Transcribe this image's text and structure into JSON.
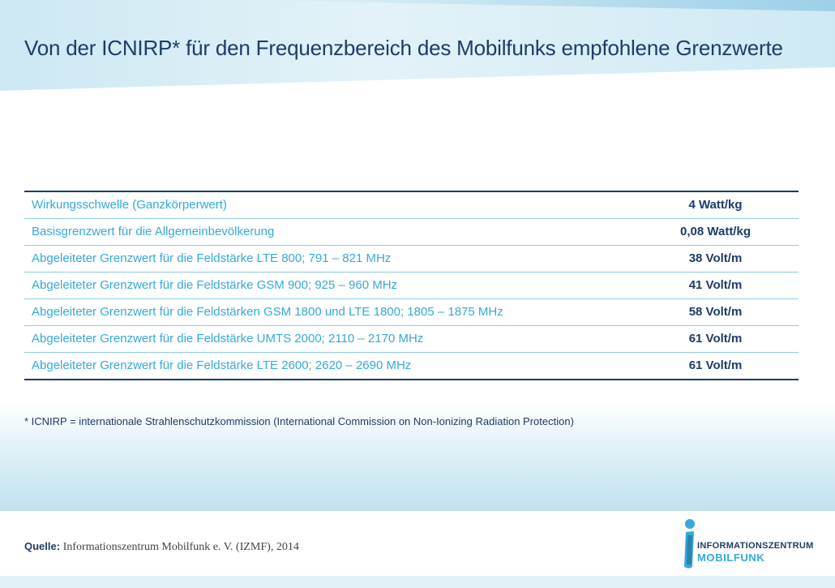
{
  "title": "Von der ICNIRP* für den Frequenzbereich des Mobilfunks empfohlene Grenzwerte",
  "table": {
    "rows": [
      {
        "label": "Wirkungsschwelle (Ganzkörperwert)",
        "value": "4 Watt/kg"
      },
      {
        "label": "Basisgrenzwert für die Allgemeinbevölkerung",
        "value": "0,08 Watt/kg"
      },
      {
        "label": "Abgeleiteter Grenzwert für die Feldstärke LTE 800; 791 – 821 MHz",
        "value": "38 Volt/m"
      },
      {
        "label": "Abgeleiteter Grenzwert für die Feldstärke GSM 900; 925 – 960 MHz",
        "value": "41 Volt/m"
      },
      {
        "label": "Abgeleiteter Grenzwert für die Feldstärken GSM 1800 und LTE 1800; 1805 – 1875 MHz",
        "value": "58 Volt/m"
      },
      {
        "label": "Abgeleiteter Grenzwert für die Feldstärke UMTS 2000; 2110 – 2170 MHz",
        "value": "61 Volt/m"
      },
      {
        "label": "Abgeleiteter Grenzwert für die Feldstärke LTE 2600; 2620 – 2690 MHz",
        "value": "61 Volt/m"
      }
    ]
  },
  "footnote": "* ICNIRP = internationale Strahlenschutzkommission (International Commission on Non-Ionizing Radiation Protection)",
  "source": {
    "label": "Quelle:",
    "text": "Informationszentrum Mobilfunk e. V. (IZMF), 2014"
  },
  "logo": {
    "line1": "INFORMATIONSZENTRUM",
    "line2": "MOBILFUNK",
    "icon": "person-i-logo-icon"
  },
  "colors": {
    "navy": "#1d3c66",
    "accent": "#35a9d8",
    "band": "#cde8f3"
  }
}
